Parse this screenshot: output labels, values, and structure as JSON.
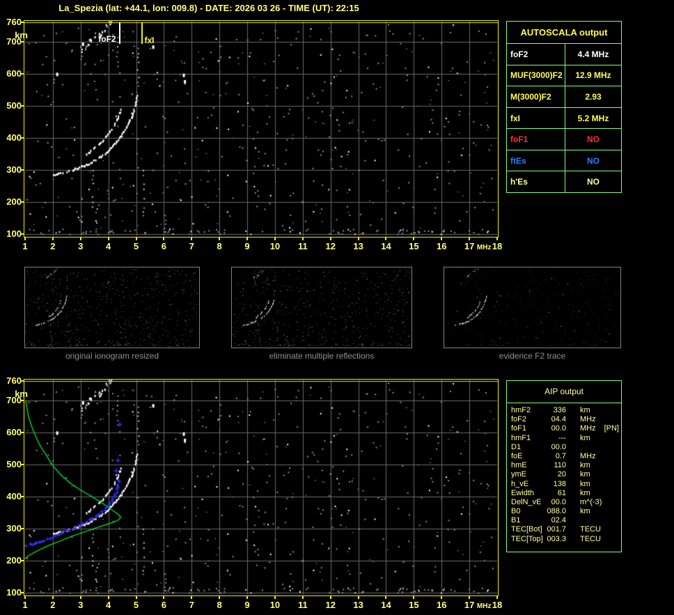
{
  "title": "La_Spezia (lat: +44.1, lon: 009.8) - DATE:  2026 03 26 - TIME (UT):  22:15",
  "colors": {
    "accent_yellow": "#ffff80",
    "border_yellow": "#f0f000",
    "table_green": "#80ff80",
    "grid_gray": "#6b6b6b",
    "profile_green": "#00cf2a",
    "trace_blue": "#3030ff",
    "caption_gray": "#8f8f8f",
    "value_white": "#ffffff",
    "alert_red": "#ff3030",
    "es_blue": "#2a7fff"
  },
  "axes": {
    "x_ticks": [
      "1",
      "2",
      "3",
      "4",
      "5",
      "6",
      "7",
      "8",
      "9",
      "10",
      "11",
      "12",
      "13",
      "14",
      "15",
      "16",
      "17",
      "18"
    ],
    "x_unit": "MHz",
    "y_ticks": [
      "760",
      "700",
      "600",
      "500",
      "400",
      "300",
      "200",
      "100"
    ],
    "y_unit": "km"
  },
  "annotations": {
    "foF2_label": "foF2",
    "fxI_label": "fxI"
  },
  "autoscala": {
    "header": "AUTOSCALA output",
    "rows": [
      {
        "label": "foF2",
        "value": "4.4 MHz",
        "color": "#ffffff"
      },
      {
        "label": "MUF(3000)F2",
        "value": "12.9 MHz",
        "color": "#ffff4d"
      },
      {
        "label": "M(3000)F2",
        "value": "2.93",
        "color": "#ffff4d"
      },
      {
        "label": "fxI",
        "value": "5.2 MHz",
        "color": "#ffff4d"
      },
      {
        "label": "foF1",
        "value": "NO",
        "color": "#ff3030"
      },
      {
        "label": "ftEs",
        "value": "NO",
        "color": "#2a7fff"
      },
      {
        "label": "h'Es",
        "value": "NO",
        "color": "#ffff9e"
      }
    ]
  },
  "aip": {
    "header": "AIP output",
    "rows": [
      {
        "label": "hmF2",
        "value": "336",
        "unit": "km",
        "extra": ""
      },
      {
        "label": "foF2",
        "value": "04.4",
        "unit": "MHz",
        "extra": ""
      },
      {
        "label": "foF1",
        "value": "00.0",
        "unit": "MHz",
        "extra": "[PN]"
      },
      {
        "label": "hmF1",
        "value": "---",
        "unit": "km",
        "extra": ""
      },
      {
        "label": "D1",
        "value": "00.0",
        "unit": "",
        "extra": ""
      },
      {
        "label": "foE",
        "value": "0.7",
        "unit": "MHz",
        "extra": ""
      },
      {
        "label": "hmE",
        "value": "110",
        "unit": "km",
        "extra": ""
      },
      {
        "label": "ymE",
        "value": "20",
        "unit": "km",
        "extra": ""
      },
      {
        "label": "h_vE",
        "value": "138",
        "unit": "km",
        "extra": ""
      },
      {
        "label": "Ewidth",
        "value": "61",
        "unit": "km",
        "extra": ""
      },
      {
        "label": "DelN_vE",
        "value": "00.0",
        "unit": "m^(-3)",
        "extra": ""
      },
      {
        "label": "B0",
        "value": "088.0",
        "unit": "km",
        "extra": ""
      },
      {
        "label": "B1",
        "value": "02.4",
        "unit": "",
        "extra": ""
      },
      {
        "label": "TEC[Bot]",
        "value": "001.7",
        "unit": "TECU",
        "extra": ""
      },
      {
        "label": "TEC[Top]",
        "value": "003.3",
        "unit": "TECU",
        "extra": ""
      }
    ]
  },
  "thumbnails": [
    {
      "caption": "original ionogram resized"
    },
    {
      "caption": "eliminate multiple reflections"
    },
    {
      "caption": "evidence F2 trace"
    }
  ],
  "chart_data": {
    "type": "scatter",
    "title": "Ionogram with autoscaled traces and electron density profile",
    "x_axis": {
      "label": "MHz",
      "range": [
        1,
        18
      ]
    },
    "y_axis": {
      "label": "km",
      "range": [
        100,
        760
      ]
    },
    "grid": true,
    "markers": {
      "foF2_MHz": 4.4,
      "fxI_MHz": 5.2
    },
    "echo_trace_main": [
      [
        2.0,
        287
      ],
      [
        2.4,
        295
      ],
      [
        2.8,
        305
      ],
      [
        3.2,
        318
      ],
      [
        3.6,
        336
      ],
      [
        3.9,
        356
      ],
      [
        4.2,
        382
      ],
      [
        4.45,
        410
      ],
      [
        4.65,
        438
      ],
      [
        4.82,
        468
      ],
      [
        4.95,
        505
      ],
      [
        5.03,
        538
      ]
    ],
    "echo_trace_second": [
      [
        3.2,
        352
      ],
      [
        3.5,
        372
      ],
      [
        3.8,
        396
      ],
      [
        4.05,
        422
      ],
      [
        4.25,
        450
      ],
      [
        4.38,
        478
      ],
      [
        4.45,
        505
      ]
    ],
    "profile_topside": [
      [
        1.02,
        700
      ],
      [
        1.12,
        650
      ],
      [
        1.28,
        608
      ],
      [
        1.5,
        565
      ],
      [
        1.75,
        530
      ],
      [
        2.0,
        496
      ],
      [
        2.3,
        466
      ],
      [
        2.65,
        440
      ],
      [
        3.0,
        420
      ],
      [
        3.4,
        400
      ],
      [
        3.8,
        378
      ],
      [
        4.1,
        360
      ],
      [
        4.3,
        348
      ],
      [
        4.42,
        338
      ]
    ],
    "profile_bottomside": [
      [
        4.45,
        336
      ],
      [
        4.35,
        326
      ],
      [
        4.1,
        317
      ],
      [
        3.8,
        309
      ],
      [
        3.45,
        299
      ],
      [
        3.05,
        287
      ],
      [
        2.65,
        275
      ],
      [
        2.25,
        261
      ],
      [
        1.85,
        247
      ],
      [
        1.45,
        231
      ],
      [
        1.15,
        217
      ],
      [
        1.0,
        206
      ]
    ],
    "restored_trace_blue": [
      [
        1.05,
        248
      ],
      [
        1.4,
        257
      ],
      [
        1.8,
        268
      ],
      [
        2.2,
        281
      ],
      [
        2.6,
        296
      ],
      [
        3.0,
        312
      ],
      [
        3.3,
        326
      ],
      [
        3.6,
        342
      ],
      [
        3.85,
        360
      ],
      [
        4.05,
        380
      ],
      [
        4.2,
        400
      ],
      [
        4.3,
        422
      ],
      [
        4.36,
        446
      ],
      [
        4.39,
        462
      ]
    ],
    "blue_isolated": [
      [
        4.27,
        481
      ],
      [
        4.33,
        514
      ],
      [
        4.4,
        626
      ]
    ],
    "noise_columns": [
      [
        3.42,
        180,
        300
      ],
      [
        3.55,
        100,
        180
      ],
      [
        5.25,
        140,
        300
      ],
      [
        5.05,
        545,
        695
      ],
      [
        6.02,
        104,
        160
      ],
      [
        4.3,
        620,
        700
      ]
    ],
    "noise_cluster": {
      "from": [
        2.85,
        668
      ],
      "to": [
        4.15,
        762
      ]
    },
    "bright_spots": [
      [
        6.68,
        600
      ],
      [
        6.72,
        580
      ],
      [
        2.12,
        603
      ],
      [
        5.58,
        688
      ],
      [
        3.05,
        697
      ]
    ]
  }
}
